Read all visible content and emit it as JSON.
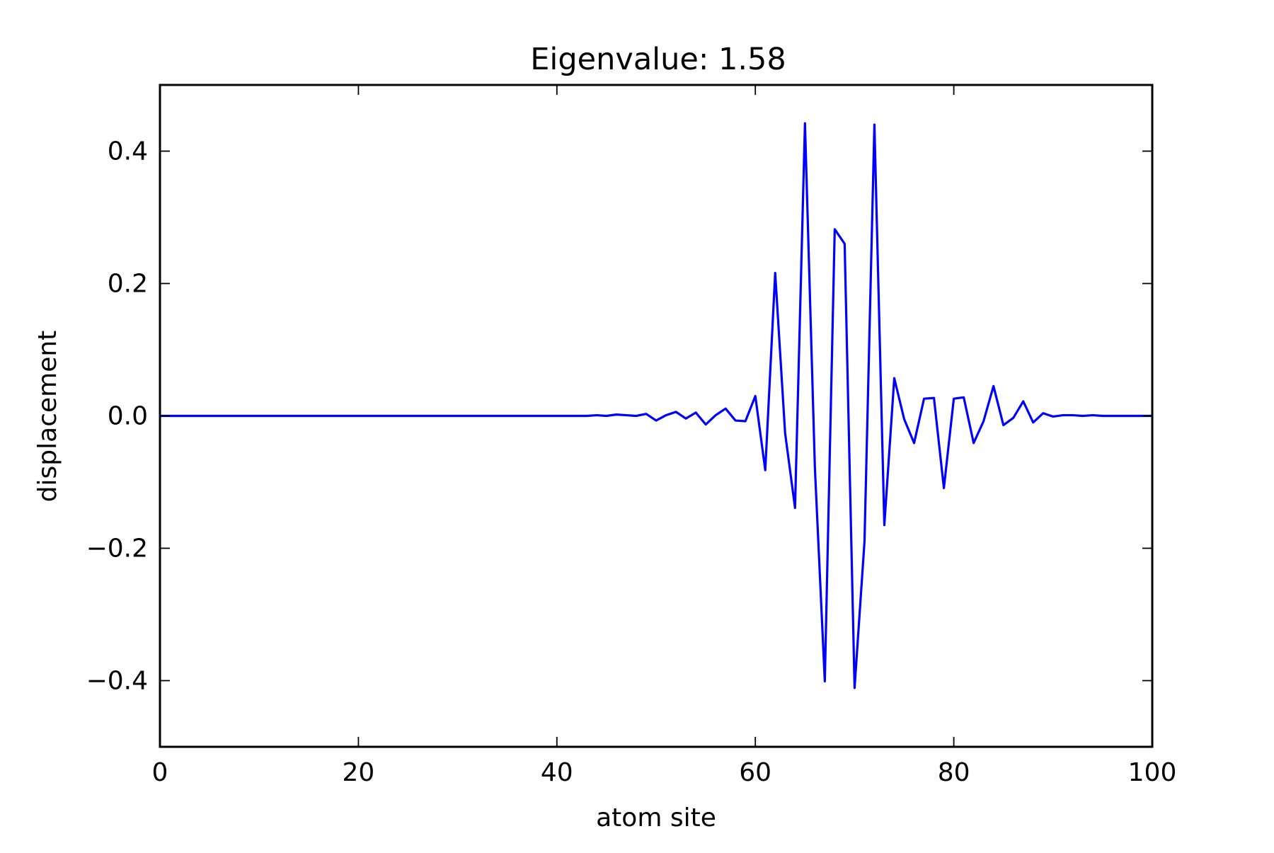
{
  "chart_data": {
    "type": "line",
    "title": "Eigenvalue: 1.58",
    "xlabel": "atom site",
    "ylabel": "displacement",
    "xlim": [
      0,
      100
    ],
    "ylim": [
      -0.5,
      0.5
    ],
    "xticks": [
      0,
      20,
      40,
      60,
      80,
      100
    ],
    "xtick_labels": [
      "0",
      "20",
      "40",
      "60",
      "80",
      "100"
    ],
    "yticks": [
      -0.4,
      -0.2,
      0.0,
      0.2,
      0.4
    ],
    "ytick_labels": [
      "−0.4",
      "−0.2",
      "0.0",
      "0.2",
      "0.4"
    ],
    "grid": false,
    "legend": "none",
    "series": [
      {
        "color": "#0000ff",
        "x": [
          0,
          1,
          2,
          3,
          4,
          5,
          6,
          7,
          8,
          9,
          10,
          11,
          12,
          13,
          14,
          15,
          16,
          17,
          18,
          19,
          20,
          21,
          22,
          23,
          24,
          25,
          26,
          27,
          28,
          29,
          30,
          31,
          32,
          33,
          34,
          35,
          36,
          37,
          38,
          39,
          40,
          41,
          42,
          43,
          44,
          45,
          46,
          47,
          48,
          49,
          50,
          51,
          52,
          53,
          54,
          55,
          56,
          57,
          58,
          59,
          60,
          61,
          62,
          63,
          64,
          65,
          66,
          67,
          68,
          69,
          70,
          71,
          72,
          73,
          74,
          75,
          76,
          77,
          78,
          79,
          80,
          81,
          82,
          83,
          84,
          85,
          86,
          87,
          88,
          89,
          90,
          91,
          92,
          93,
          94,
          95,
          96,
          97,
          98,
          99,
          100
        ],
        "y": [
          0,
          0,
          0,
          0,
          0,
          0,
          0,
          0,
          0,
          0,
          0,
          0,
          0,
          0,
          0,
          0,
          0,
          0,
          0,
          0,
          0,
          0,
          0,
          0,
          0,
          0,
          0,
          0,
          0,
          0,
          0,
          0,
          0,
          0,
          0,
          0,
          0,
          0,
          0,
          0,
          0,
          0,
          0,
          0,
          0.001,
          0,
          0.002,
          0.001,
          0,
          0.003,
          -0.007,
          0.001,
          0.006,
          -0.004,
          0.005,
          -0.013,
          0.001,
          0.011,
          -0.007,
          -0.008,
          0.03,
          -0.082,
          0.216,
          -0.026,
          -0.139,
          0.442,
          -0.078,
          -0.401,
          0.282,
          0.26,
          -0.411,
          -0.19,
          0.44,
          -0.165,
          0.057,
          -0.005,
          -0.041,
          0.026,
          0.027,
          -0.109,
          0.026,
          0.028,
          -0.041,
          -0.008,
          0.045,
          -0.014,
          -0.003,
          0.022,
          -0.01,
          0.004,
          -0.001,
          0.001,
          0.001,
          0,
          0.001,
          0,
          0,
          0,
          0,
          0,
          0
        ]
      }
    ]
  }
}
